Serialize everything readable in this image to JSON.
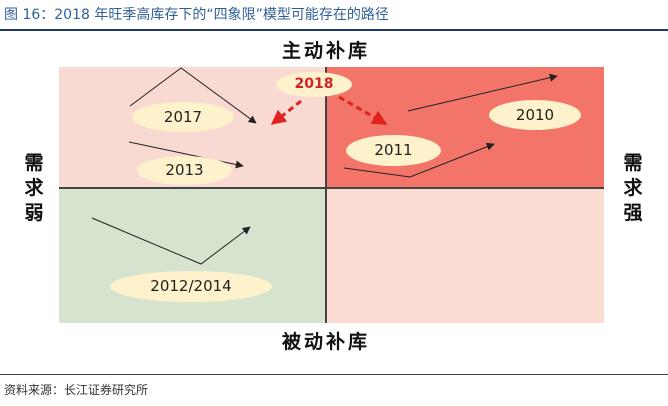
{
  "figure_title": "图 16：2018 年旺季高库存下的“四象限”模型可能存在的路径",
  "source": "资料来源：长江证券研究所",
  "axes": {
    "top": "主动补库",
    "bottom": "被动补库",
    "left": "需求弱",
    "right": "需求强"
  },
  "years": {
    "y2017": "2017",
    "y2013": "2013",
    "y2012": "2012/2014",
    "y2010": "2010",
    "y2011": "2011",
    "y2018": "2018"
  },
  "colors": {
    "top_left": "#f9dad2",
    "top_right": "#f37469",
    "bottom_left": "#d5e3cf",
    "bottom_right": "#fbdcd2",
    "title_blue": "#2f5f98",
    "highlight_red": "#d2232a"
  }
}
